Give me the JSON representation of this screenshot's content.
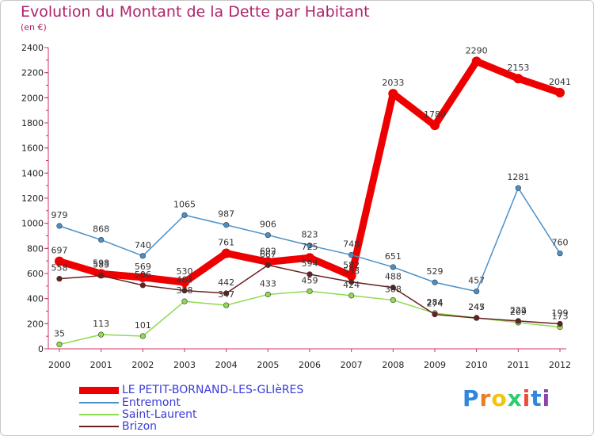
{
  "title": "Evolution du Montant de la Dette par Habitant",
  "subtitle": "(en €)",
  "logo": {
    "text": "Proxiti",
    "letters": [
      "P",
      "r",
      "o",
      "x",
      "i",
      "t",
      "i"
    ],
    "colors": [
      "#2e86de",
      "#e67e22",
      "#f1c40f",
      "#2ecc71",
      "#e74c3c",
      "#2e86de",
      "#8e44ad"
    ]
  },
  "chart_data": {
    "type": "line",
    "x": [
      "2000",
      "2001",
      "2002",
      "2003",
      "2004",
      "2005",
      "2006",
      "2007",
      "2008",
      "2009",
      "2010",
      "2011",
      "2012"
    ],
    "ylim": [
      0,
      2400
    ],
    "yticks": [
      0,
      200,
      400,
      600,
      800,
      1000,
      1200,
      1400,
      1600,
      1800,
      2000,
      2200,
      2400
    ],
    "grid": false,
    "legend_position": "bottom-left",
    "series": [
      {
        "name": "LE PETIT-BORNAND-LES-GLIèRES",
        "color": "#ee0000",
        "values": [
          697,
          598,
          569,
          530,
          761,
          692,
          725,
          582,
          2033,
          1780,
          2290,
          2153,
          2041
        ]
      },
      {
        "name": "Entremont",
        "color": "#4a90c8",
        "values": [
          979,
          868,
          740,
          1065,
          987,
          906,
          823,
          748,
          651,
          529,
          457,
          1281,
          760
        ]
      },
      {
        "name": "Saint-Laurent",
        "color": "#8fdb4f",
        "values": [
          35,
          113,
          101,
          378,
          347,
          433,
          459,
          424,
          388,
          284,
          247,
          209,
          173
        ]
      },
      {
        "name": "Brizon",
        "color": "#6b1f1f",
        "values": [
          558,
          583,
          506,
          464,
          442,
          667,
          594,
          533,
          488,
          274,
          245,
          222,
          199
        ]
      }
    ]
  }
}
